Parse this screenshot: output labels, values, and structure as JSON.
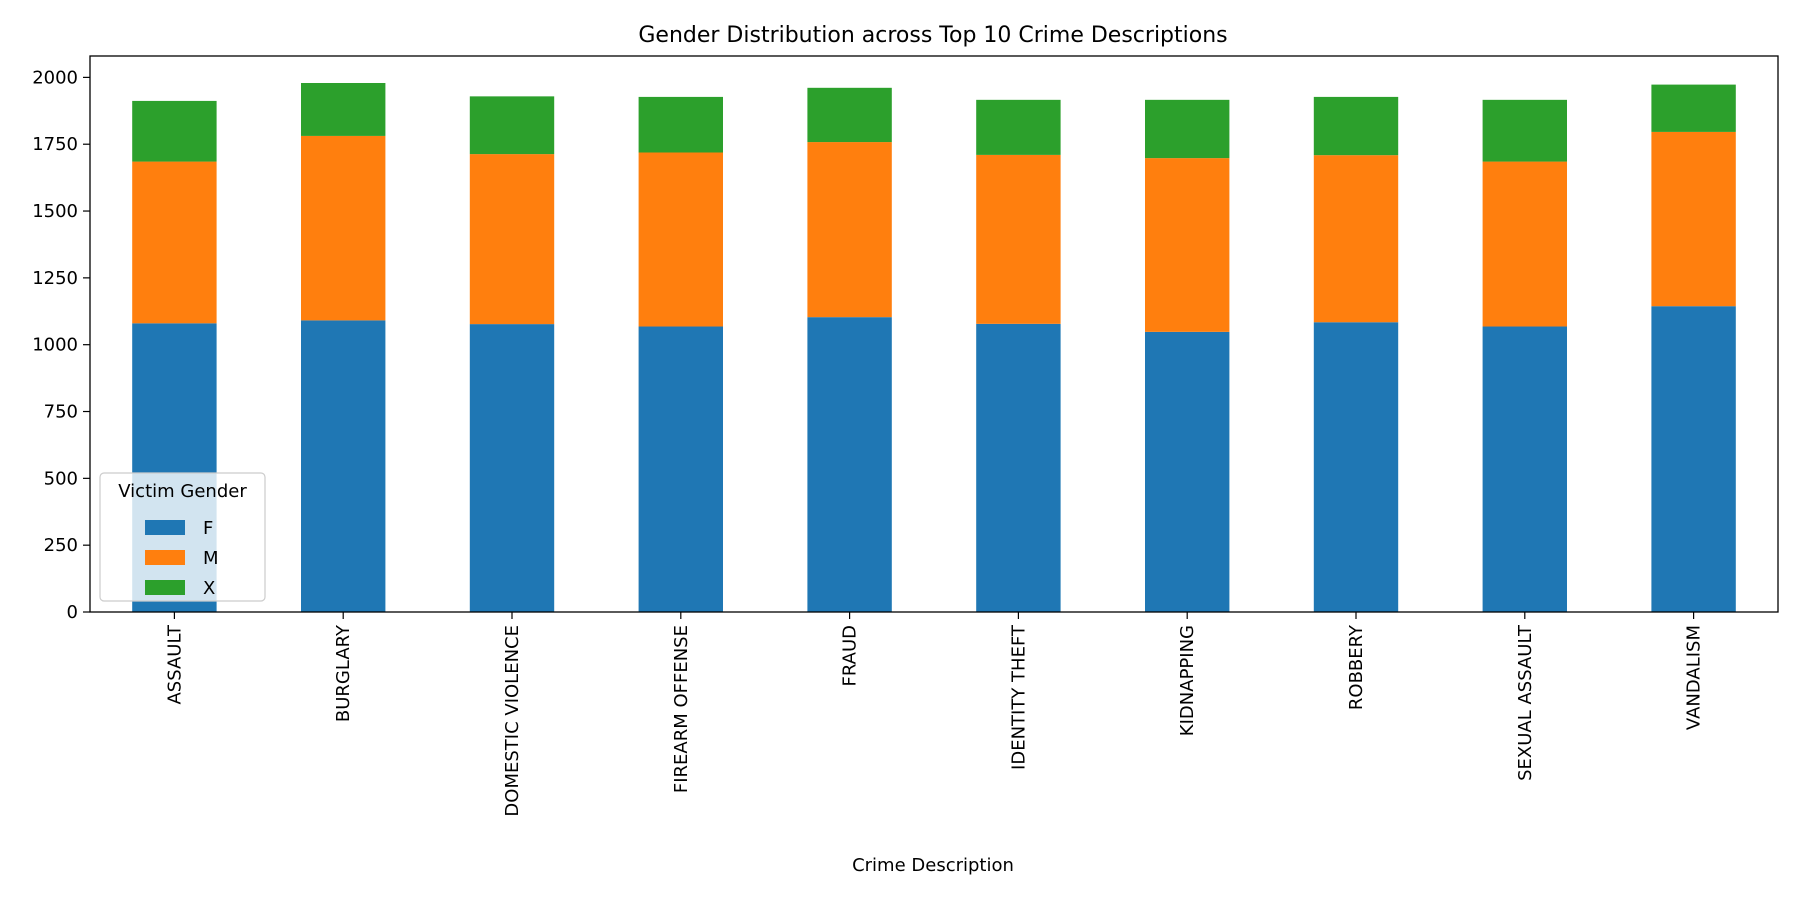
{
  "chart_data": {
    "type": "bar",
    "stacked": true,
    "title": "Gender Distribution across Top 10 Crime Descriptions",
    "xlabel": "Crime Description",
    "ylabel": "",
    "ylim": [
      0,
      2080
    ],
    "yticks": [
      0,
      250,
      500,
      750,
      1000,
      1250,
      1500,
      1750,
      2000
    ],
    "categories": [
      "ASSAULT",
      "BURGLARY",
      "DOMESTIC VIOLENCE",
      "FIREARM OFFENSE",
      "FRAUD",
      "IDENTITY THEFT",
      "KIDNAPPING",
      "ROBBERY",
      "SEXUAL ASSAULT",
      "VANDALISM"
    ],
    "series": [
      {
        "name": "F",
        "color": "#1f77b4",
        "values": [
          1080,
          1091,
          1077,
          1068,
          1103,
          1078,
          1048,
          1084,
          1068,
          1144
        ]
      },
      {
        "name": "M",
        "color": "#ff7f0e",
        "values": [
          605,
          690,
          636,
          651,
          655,
          632,
          650,
          625,
          617,
          652
        ]
      },
      {
        "name": "X",
        "color": "#2ca02c",
        "values": [
          227,
          198,
          216,
          208,
          203,
          206,
          218,
          218,
          231,
          177
        ]
      }
    ],
    "legend": {
      "title": "Victim Gender",
      "position": "lower-left"
    }
  }
}
